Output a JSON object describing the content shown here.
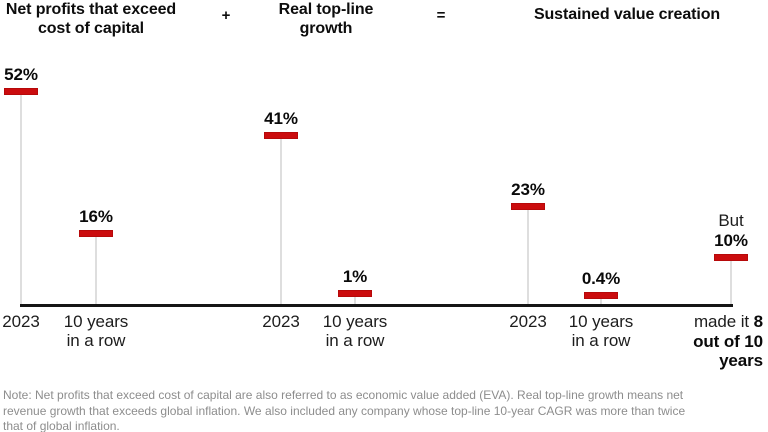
{
  "chart_data": {
    "type": "bar",
    "variant": "lollipop",
    "unit": "%",
    "ylim": [
      0,
      55
    ],
    "grid": false,
    "legend": false,
    "accent_color": "#cb0c0e",
    "stem_color": "#dedede",
    "axis_color": "#151515",
    "equation": {
      "titles": [
        "Net profits that exceed cost of capital",
        "Real top-line growth",
        "Sustained value creation"
      ],
      "operators": [
        "+",
        "="
      ]
    },
    "categories": [
      "2023",
      "10 years in a row",
      "2023",
      "10 years in a row",
      "2023",
      "10 years in a row",
      "made it 8 out of 10 years"
    ],
    "points": [
      {
        "group": "Net profits that exceed cost of capital",
        "axis_label": "2023",
        "value": 52,
        "value_label": "52%"
      },
      {
        "group": "Net profits that exceed cost of capital",
        "axis_label": "10 years\nin a row",
        "value": 16,
        "value_label": "16%"
      },
      {
        "group": "Real top-line growth",
        "axis_label": "2023",
        "value": 41,
        "value_label": "41%"
      },
      {
        "group": "Real top-line growth",
        "axis_label": "10 years\nin a row",
        "value": 1,
        "value_label": "1%"
      },
      {
        "group": "Sustained value creation",
        "axis_label": "2023",
        "value": 23,
        "value_label": "23%"
      },
      {
        "group": "Sustained value creation",
        "axis_label": "10 years\nin a row",
        "value": 0.4,
        "value_label": "0.4%"
      },
      {
        "group": "Sustained value creation",
        "axis_label_regular": "made it ",
        "axis_label_bold": "8 out of 10 years",
        "value": 10,
        "value_label": "10%",
        "value_prefix": "But"
      }
    ],
    "note_lines": [
      "Note: Net profits that exceed cost of capital are also referred to as economic value added (EVA). Real top-line growth means net",
      "revenue growth that exceeds global inflation. We also included any company whose top-line 10-year CAGR was more than twice",
      "that of global inflation."
    ]
  }
}
